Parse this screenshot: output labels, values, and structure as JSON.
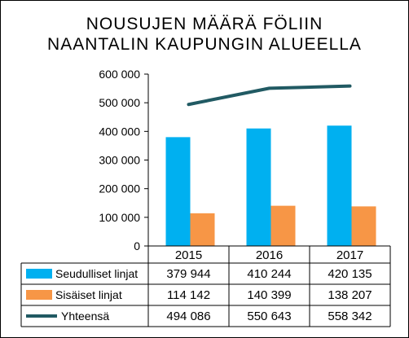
{
  "chart_data": {
    "type": "bar",
    "title_lines": [
      "NOUSUJEN MÄÄRÄ FÖLIIN",
      "NAANTALIN KAUPUNGIN ALUEELLA"
    ],
    "categories": [
      "2015",
      "2016",
      "2017"
    ],
    "ylim": [
      0,
      600000
    ],
    "yticks": [
      0,
      100000,
      200000,
      300000,
      400000,
      500000,
      600000
    ],
    "ytick_labels": [
      "0",
      "100 000",
      "200 000",
      "300 000",
      "400 000",
      "500 000",
      "600 000"
    ],
    "grid": false,
    "legend": "data-table-bottom",
    "series": [
      {
        "name": "Seudulliset linjat",
        "kind": "bar",
        "color": "#00b0f0",
        "values": [
          379944,
          410244,
          420135
        ],
        "value_labels": [
          "379 944",
          "410 244",
          "420 135"
        ]
      },
      {
        "name": "Sisäiset linjat",
        "kind": "bar",
        "color": "#f79646",
        "values": [
          114142,
          140399,
          138207
        ],
        "value_labels": [
          "114 142",
          "140 399",
          "138 207"
        ]
      },
      {
        "name": "Yhteensä",
        "kind": "line",
        "color": "#215a63",
        "values": [
          494086,
          550643,
          558342
        ],
        "value_labels": [
          "494 086",
          "550 643",
          "558 342"
        ]
      }
    ]
  }
}
